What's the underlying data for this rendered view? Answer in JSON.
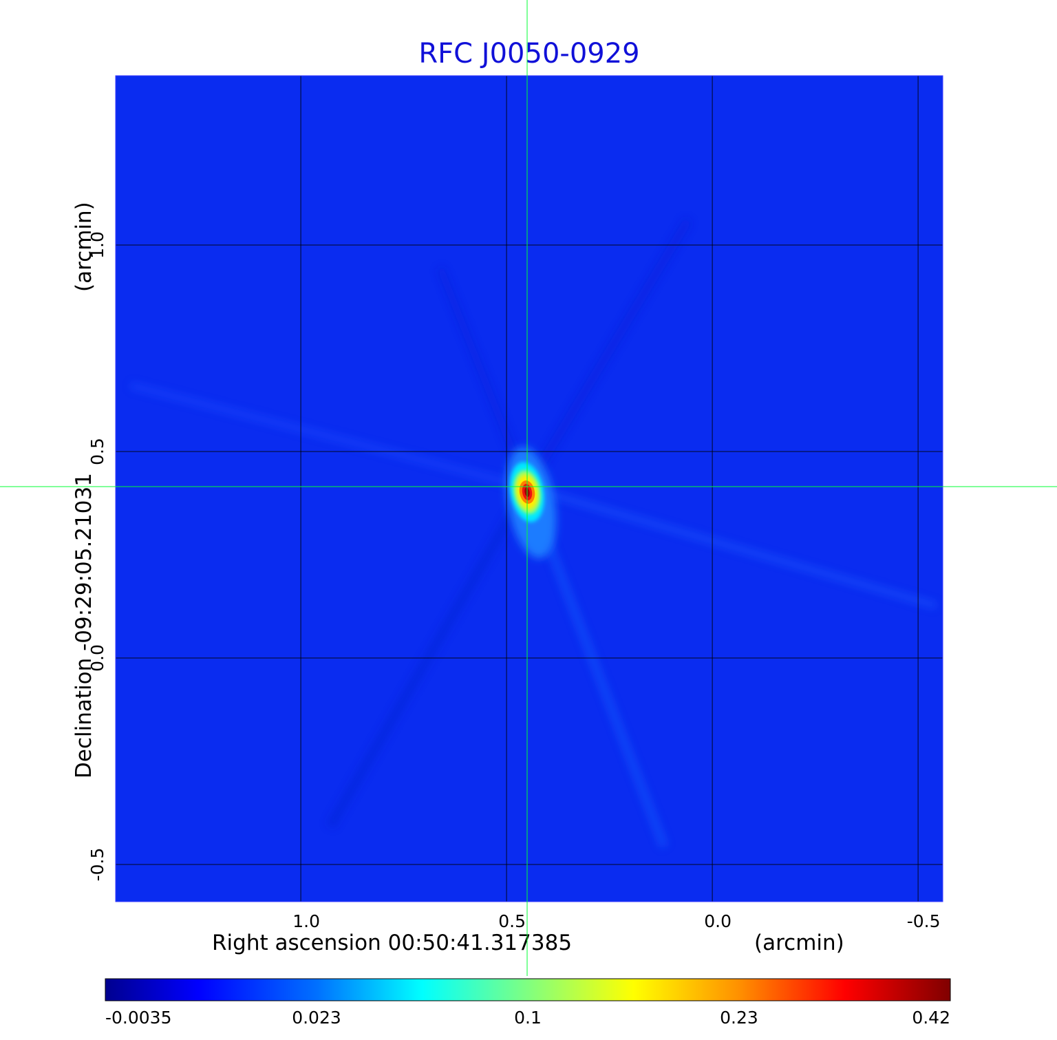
{
  "chart_data": {
    "type": "heatmap",
    "title": "RFC J0050-0929",
    "xlabel": "Right ascension  00:50:41.317385",
    "xunit": "(arcmin)",
    "ylabel": "Declination  -09:29:05.21031",
    "yunit": "(arcmin)",
    "x_reversed": true,
    "xlim": [
      1.45,
      -0.56
    ],
    "ylim": [
      -0.59,
      1.41
    ],
    "x_ticks": [
      {
        "value": 1.0,
        "label": "1.0"
      },
      {
        "value": 0.5,
        "label": "0.5"
      },
      {
        "value": 0.0,
        "label": "0.0"
      },
      {
        "value": -0.5,
        "label": "-0.5"
      }
    ],
    "y_ticks": [
      {
        "value": -0.5,
        "label": "-0.5"
      },
      {
        "value": 0.0,
        "label": "0.0"
      },
      {
        "value": 0.5,
        "label": "0.5"
      },
      {
        "value": 1.0,
        "label": "1.0"
      }
    ],
    "grid": true,
    "crosshair": {
      "x": 0.45,
      "y": 0.415
    },
    "peak": {
      "x": 0.45,
      "y": 0.415,
      "value": 0.42
    },
    "colormap": "jet",
    "color_scale_ticks": [
      "-0.0035",
      "0.023",
      "0.1",
      "0.23",
      "0.42"
    ],
    "color_range": [
      -0.0035,
      0.42
    ],
    "colorbar_position": "bottom"
  },
  "colors": {
    "title": "#1010d8",
    "crosshair": "#00ff33",
    "background_map": "#0a2cf0"
  }
}
